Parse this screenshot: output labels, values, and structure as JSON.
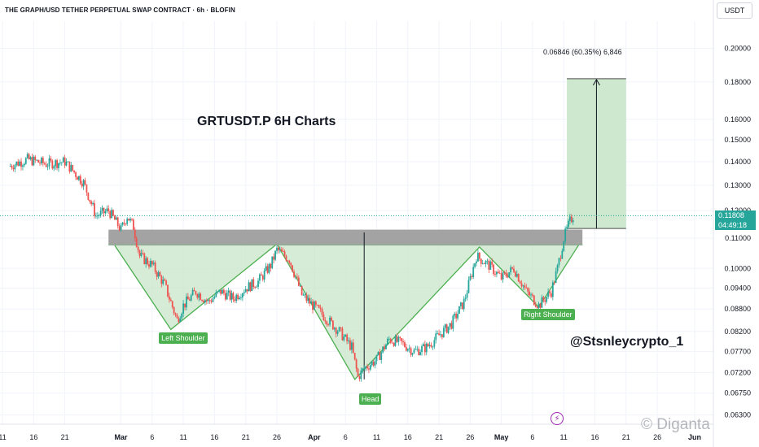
{
  "header": {
    "title": "THE GRAPH/USD TETHER PERPETUAL SWAP CONTRACT · 6h · BLOFIN",
    "currency": "USDT"
  },
  "last_price": {
    "value": "0.11808",
    "countdown": "04:49:18"
  },
  "annotations": {
    "chart_title": "GRTUSDT.P 6H Charts",
    "handle": "@Stsnleycrypto_1",
    "measure": "0.06846 (60.35%) 6,846",
    "left_shoulder": "Left Shoulder",
    "head": "Head",
    "right_shoulder": "Right Shoulder"
  },
  "watermark": "© Diganta",
  "colors": {
    "up": "#26a69a",
    "down": "#ef5350",
    "pattern_fill": "#c8e6c9",
    "pattern_line": "#4caf50",
    "zone": "#9e9e9e",
    "target_fill": "#c8e6c9"
  },
  "chart_data": {
    "type": "candlestick",
    "y_scale": "log",
    "y_ticks": [
      "0.20000",
      "0.18000",
      "0.16000",
      "0.15000",
      "0.14000",
      "0.13000",
      "0.12000",
      "0.11000",
      "0.10000",
      "0.09400",
      "0.08800",
      "0.08200",
      "0.07700",
      "0.07200",
      "0.06750",
      "0.06300"
    ],
    "y_tick_values": [
      0.2,
      0.18,
      0.16,
      0.15,
      0.14,
      0.13,
      0.12,
      0.11,
      0.1,
      0.094,
      0.088,
      0.082,
      0.077,
      0.072,
      0.0675,
      0.063
    ],
    "ylim": [
      0.0612,
      0.218
    ],
    "x_ticks": [
      "11",
      "16",
      "21",
      "Mar",
      "6",
      "11",
      "16",
      "21",
      "26",
      "Apr",
      "6",
      "11",
      "16",
      "21",
      "26",
      "May",
      "6",
      "11",
      "16",
      "21",
      "26",
      "Jun"
    ],
    "xlim_days": [
      -1.4,
      113
    ],
    "x_tick_days": [
      -1,
      4,
      9,
      18,
      23,
      28,
      33,
      38,
      43,
      49,
      54,
      59,
      64,
      69,
      74,
      79,
      84,
      89,
      94,
      99,
      104,
      110
    ],
    "price_path": [
      [
        0,
        0.138
      ],
      [
        3,
        0.141
      ],
      [
        6,
        0.139
      ],
      [
        9,
        0.14
      ],
      [
        12,
        0.131
      ],
      [
        14,
        0.118
      ],
      [
        16,
        0.12
      ],
      [
        18,
        0.113
      ],
      [
        19,
        0.118
      ],
      [
        20,
        0.114
      ],
      [
        21,
        0.104
      ],
      [
        23,
        0.101
      ],
      [
        25,
        0.095
      ],
      [
        27,
        0.085
      ],
      [
        28,
        0.089
      ],
      [
        30,
        0.093
      ],
      [
        32,
        0.09
      ],
      [
        34,
        0.093
      ],
      [
        36,
        0.091
      ],
      [
        38,
        0.094
      ],
      [
        40,
        0.096
      ],
      [
        42,
        0.101
      ],
      [
        43,
        0.106
      ],
      [
        45,
        0.103
      ],
      [
        47,
        0.092
      ],
      [
        50,
        0.087
      ],
      [
        53,
        0.082
      ],
      [
        55,
        0.078
      ],
      [
        56,
        0.071
      ],
      [
        57,
        0.073
      ],
      [
        59,
        0.075
      ],
      [
        61,
        0.08
      ],
      [
        63,
        0.079
      ],
      [
        65,
        0.077
      ],
      [
        67,
        0.078
      ],
      [
        69,
        0.081
      ],
      [
        71,
        0.084
      ],
      [
        73,
        0.09
      ],
      [
        75,
        0.104
      ],
      [
        77,
        0.101
      ],
      [
        79,
        0.097
      ],
      [
        81,
        0.1
      ],
      [
        83,
        0.093
      ],
      [
        85,
        0.089
      ],
      [
        87,
        0.093
      ],
      [
        88,
        0.1
      ],
      [
        89,
        0.11
      ],
      [
        90,
        0.116
      ],
      [
        90.5,
        0.118
      ]
    ],
    "resistance_zone": {
      "x_days": [
        16,
        92
      ],
      "y": [
        0.1075,
        0.113
      ]
    },
    "neckline": 0.1078,
    "head_and_shoulders": {
      "points": [
        [
          17,
          0.1075
        ],
        [
          26,
          0.0825
        ],
        [
          43,
          0.108
        ],
        [
          55.5,
          0.0705
        ],
        [
          75.5,
          0.107
        ],
        [
          85,
          0.0885
        ],
        [
          91.5,
          0.108
        ]
      ],
      "labels": [
        {
          "text_key": "left_shoulder",
          "x": 28,
          "y": 0.0805
        },
        {
          "text_key": "head",
          "x": 58,
          "y": 0.0665
        },
        {
          "text_key": "right_shoulder",
          "x": 86.5,
          "y": 0.0868
        }
      ]
    },
    "head_line": {
      "x": 57,
      "y": [
        0.0705,
        0.112
      ]
    },
    "target_box": {
      "x_days": [
        89.5,
        99
      ],
      "y": [
        0.1134,
        0.1818
      ]
    },
    "last_price": 0.11808
  }
}
